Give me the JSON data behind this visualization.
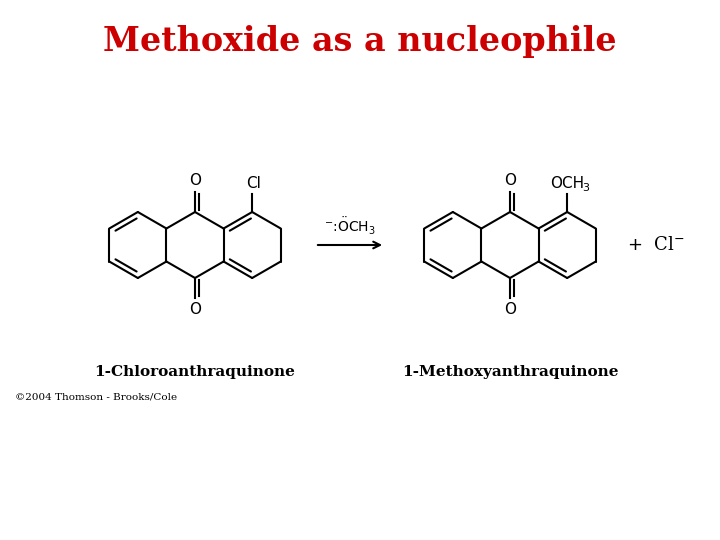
{
  "title": "Methoxide as a nucleophile",
  "title_color": "#CC0000",
  "title_fontsize": 24,
  "title_weight": "bold",
  "bg_color": "#FFFFFF",
  "label_left": "1-Chloroanthraquinone",
  "label_right": "1-Methoxyanthraquinone",
  "label_fontsize": 11,
  "label_weight": "bold",
  "copyright": "©2004 Thomson - Brooks/Cole",
  "copyright_fontsize": 7.5,
  "lw": 1.5
}
